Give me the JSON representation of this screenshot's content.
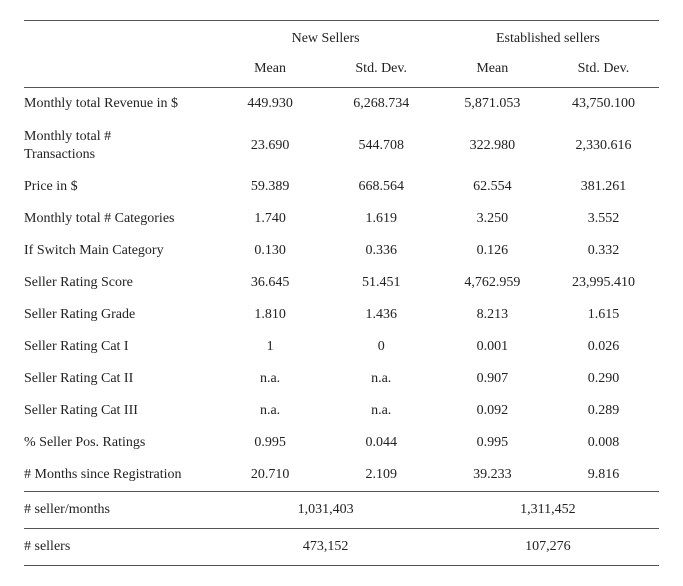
{
  "table": {
    "group_headers": [
      "New Sellers",
      "Established sellers"
    ],
    "sub_headers": [
      "Mean",
      "Std. Dev.",
      "Mean",
      "Std. Dev."
    ],
    "rows": [
      {
        "label": "Monthly total Revenue in $",
        "values": [
          "449.930",
          "6,268.734",
          "5,871.053",
          "43,750.100"
        ]
      },
      {
        "label": "Monthly total #\nTransactions",
        "values": [
          "23.690",
          "544.708",
          "322.980",
          "2,330.616"
        ]
      },
      {
        "label": "Price in $",
        "values": [
          "59.389",
          "668.564",
          "62.554",
          "381.261"
        ]
      },
      {
        "label": "Monthly total  # Categories",
        "values": [
          "1.740",
          "1.619",
          "3.250",
          "3.552"
        ]
      },
      {
        "label": "If Switch Main Category",
        "values": [
          "0.130",
          "0.336",
          "0.126",
          "0.332"
        ]
      },
      {
        "label": "Seller Rating Score",
        "values": [
          "36.645",
          "51.451",
          "4,762.959",
          "23,995.410"
        ]
      },
      {
        "label": "Seller Rating Grade",
        "values": [
          "1.810",
          "1.436",
          "8.213",
          "1.615"
        ]
      },
      {
        "label": "Seller Rating Cat I",
        "values": [
          "1",
          "0",
          "0.001",
          "0.026"
        ]
      },
      {
        "label": "Seller Rating Cat II",
        "values": [
          "n.a.",
          "n.a.",
          "0.907",
          "0.290"
        ]
      },
      {
        "label": "Seller Rating Cat III",
        "values": [
          "n.a.",
          "n.a.",
          "0.092",
          "0.289"
        ]
      },
      {
        "label": "% Seller Pos. Ratings",
        "values": [
          "0.995",
          "0.044",
          "0.995",
          "0.008"
        ]
      },
      {
        "label": "# Months since Registration",
        "values": [
          "20.710",
          "2.109",
          "39.233",
          "9.816"
        ]
      }
    ],
    "footer": [
      {
        "label": "# seller/months",
        "values": [
          "1,031,403",
          "1,311,452"
        ]
      },
      {
        "label": "# sellers",
        "values": [
          "473,152",
          "107,276"
        ]
      }
    ]
  },
  "style": {
    "font_family": "Times New Roman",
    "body_fontsize_pt": 11,
    "text_color": "#222222",
    "rule_color": "#555555",
    "background_color": "#ffffff",
    "col_widths_pct": [
      30,
      17.5,
      17.5,
      17.5,
      17.5
    ]
  }
}
